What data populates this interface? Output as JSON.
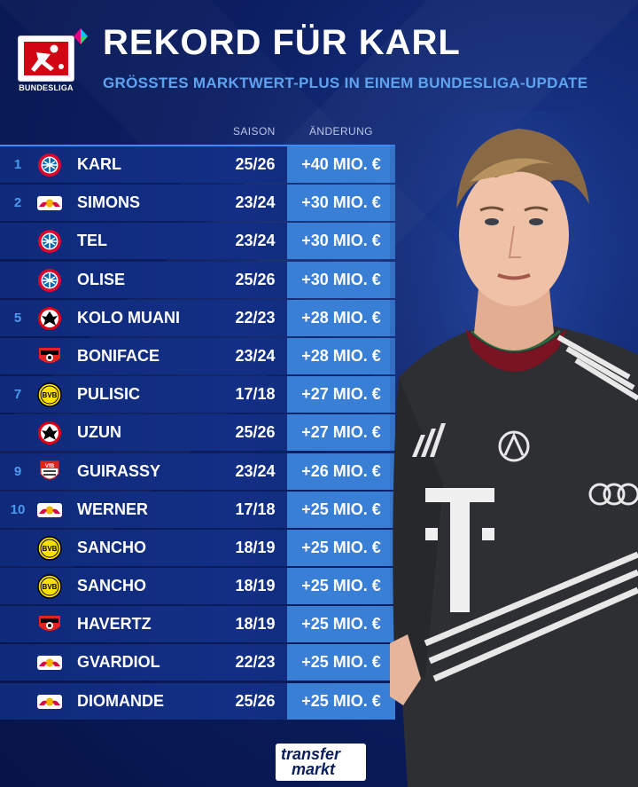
{
  "header": {
    "title": "REKORD FÜR KARL",
    "subtitle": "GRÖSSTES MARKTWERT-PLUS IN EINEM BUNDESLIGA-UPDATE",
    "league_logo_text": "BUNDESLIGA"
  },
  "columns": {
    "season": "SAISON",
    "change": "ÄNDERUNG"
  },
  "rows": [
    {
      "rank": "1",
      "club": "bayern",
      "name": "KARL",
      "season": "25/26",
      "change": "+40 MIO. €"
    },
    {
      "rank": "2",
      "club": "leipzig",
      "name": "SIMONS",
      "season": "23/24",
      "change": "+30 MIO. €"
    },
    {
      "rank": "",
      "club": "bayern",
      "name": "TEL",
      "season": "23/24",
      "change": "+30 MIO. €"
    },
    {
      "rank": "",
      "club": "bayern",
      "name": "OLISE",
      "season": "25/26",
      "change": "+30 MIO. €"
    },
    {
      "rank": "5",
      "club": "frankfurt",
      "name": "KOLO MUANI",
      "season": "22/23",
      "change": "+28 MIO. €"
    },
    {
      "rank": "",
      "club": "leverkusen",
      "name": "BONIFACE",
      "season": "23/24",
      "change": "+28 MIO. €"
    },
    {
      "rank": "7",
      "club": "dortmund",
      "name": "PULISIC",
      "season": "17/18",
      "change": "+27 MIO. €"
    },
    {
      "rank": "",
      "club": "frankfurt",
      "name": "UZUN",
      "season": "25/26",
      "change": "+27 MIO. €"
    },
    {
      "rank": "9",
      "club": "stuttgart",
      "name": "GUIRASSY",
      "season": "23/24",
      "change": "+26 MIO. €"
    },
    {
      "rank": "10",
      "club": "leipzig",
      "name": "WERNER",
      "season": "17/18",
      "change": "+25 MIO. €"
    },
    {
      "rank": "",
      "club": "dortmund",
      "name": "SANCHO",
      "season": "18/19",
      "change": "+25 MIO. €"
    },
    {
      "rank": "",
      "club": "dortmund",
      "name": "SANCHO",
      "season": "18/19",
      "change": "+25 MIO. €"
    },
    {
      "rank": "",
      "club": "leverkusen",
      "name": "HAVERTZ",
      "season": "18/19",
      "change": "+25 MIO. €"
    },
    {
      "rank": "",
      "club": "leipzig",
      "name": "GVARDIOL",
      "season": "22/23",
      "change": "+25 MIO. €"
    },
    {
      "rank": "",
      "club": "leipzig",
      "name": "DIOMANDE",
      "season": "25/26",
      "change": "+25 MIO. €"
    }
  ],
  "footer": {
    "brand_line1": "transfer",
    "brand_line2": "markt"
  },
  "colors": {
    "background": "#0c1f63",
    "row": "#132f85",
    "change_cell": "#3a7fd6",
    "rank_text": "#4a9bf0",
    "subtitle": "#5fa3ef"
  },
  "icons": {
    "bayern": "bayern-crest-icon",
    "leipzig": "leipzig-crest-icon",
    "frankfurt": "frankfurt-crest-icon",
    "leverkusen": "leverkusen-crest-icon",
    "dortmund": "dortmund-crest-icon",
    "stuttgart": "stuttgart-crest-icon"
  }
}
